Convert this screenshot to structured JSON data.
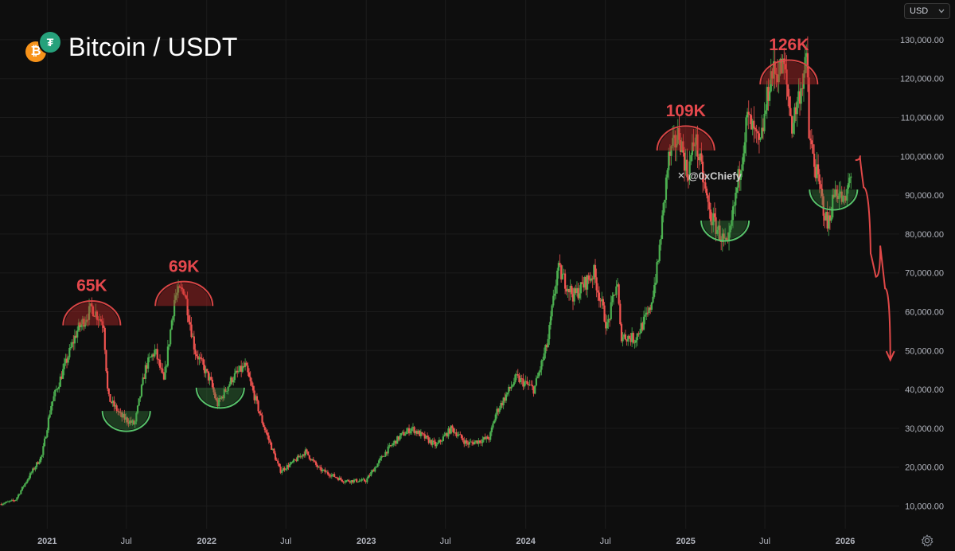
{
  "header": {
    "title": "Bitcoin / USDT",
    "currency_value": "USD",
    "icons": [
      "bitcoin-coin-icon",
      "tether-coin-icon",
      "chevron-down-icon",
      "settings-gear-icon"
    ]
  },
  "watermark": "@0xChiefy",
  "colors": {
    "background": "#0e0e0e",
    "up_candle": "#4caf50",
    "down_candle": "#ef5350",
    "top_arc": "#d94545",
    "bottom_arc": "#57c26a",
    "annotation_text": "#e5484d",
    "grid": "#1c1c1c"
  },
  "chart_data": {
    "type": "candlestick",
    "series_name": "Bitcoin / USDT",
    "y_axis": {
      "scale": "linear",
      "range": [
        4000,
        134000
      ],
      "ticks": [
        10000,
        20000,
        30000,
        40000,
        50000,
        60000,
        70000,
        80000,
        90000,
        100000,
        110000,
        120000,
        130000
      ],
      "tick_labels": [
        "10,000.00",
        "20,000.00",
        "30,000.00",
        "40,000.00",
        "50,000.00",
        "60,000.00",
        "70,000.00",
        "80,000.00",
        "90,000.00",
        "100,000.00",
        "110,000.00",
        "120,000.00",
        "130,000.00"
      ],
      "position": "right"
    },
    "x_axis": {
      "range": [
        "2020-09-15",
        "2026-04-20"
      ],
      "ticks": [
        "2021-01-01",
        "2021-07-01",
        "2022-01-01",
        "2022-07-01",
        "2023-01-01",
        "2023-07-01",
        "2024-01-01",
        "2024-07-01",
        "2025-01-01",
        "2025-07-01",
        "2026-01-01"
      ],
      "tick_labels": [
        "2021",
        "Jul",
        "2022",
        "Jul",
        "2023",
        "Jul",
        "2024",
        "Jul",
        "2025",
        "Jul",
        "2026"
      ]
    },
    "grid": true,
    "price_path": [
      [
        "2020-09-15",
        10500
      ],
      [
        "2020-10-20",
        11500
      ],
      [
        "2020-11-20",
        17500
      ],
      [
        "2020-12-20",
        23000
      ],
      [
        "2021-01-10",
        36000
      ],
      [
        "2021-02-10",
        46000
      ],
      [
        "2021-03-10",
        55000
      ],
      [
        "2021-04-13",
        61000
      ],
      [
        "2021-05-10",
        57000
      ],
      [
        "2021-05-20",
        38000
      ],
      [
        "2021-06-20",
        33000
      ],
      [
        "2021-07-20",
        31000
      ],
      [
        "2021-08-15",
        46000
      ],
      [
        "2021-09-05",
        50000
      ],
      [
        "2021-09-25",
        42000
      ],
      [
        "2021-10-20",
        64000
      ],
      [
        "2021-11-10",
        66000
      ],
      [
        "2021-12-05",
        50000
      ],
      [
        "2022-01-10",
        42000
      ],
      [
        "2022-01-25",
        36000
      ],
      [
        "2022-03-01",
        43000
      ],
      [
        "2022-03-30",
        46000
      ],
      [
        "2022-05-10",
        31000
      ],
      [
        "2022-06-18",
        19000
      ],
      [
        "2022-07-15",
        21000
      ],
      [
        "2022-08-15",
        24000
      ],
      [
        "2022-09-15",
        19500
      ],
      [
        "2022-11-10",
        16500
      ],
      [
        "2022-12-31",
        16500
      ],
      [
        "2023-02-15",
        24000
      ],
      [
        "2023-03-20",
        28000
      ],
      [
        "2023-04-15",
        30000
      ],
      [
        "2023-06-10",
        25500
      ],
      [
        "2023-07-15",
        30000
      ],
      [
        "2023-08-20",
        26000
      ],
      [
        "2023-10-10",
        27500
      ],
      [
        "2023-10-25",
        34000
      ],
      [
        "2023-12-10",
        43000
      ],
      [
        "2024-01-20",
        40000
      ],
      [
        "2024-02-20",
        52000
      ],
      [
        "2024-03-14",
        71000
      ],
      [
        "2024-04-20",
        64000
      ],
      [
        "2024-06-05",
        70000
      ],
      [
        "2024-07-05",
        56000
      ],
      [
        "2024-07-28",
        68000
      ],
      [
        "2024-08-05",
        54000
      ],
      [
        "2024-09-06",
        53000
      ],
      [
        "2024-10-10",
        60000
      ],
      [
        "2024-10-29",
        72000
      ],
      [
        "2024-11-22",
        99000
      ],
      [
        "2024-12-17",
        106000
      ],
      [
        "2025-01-05",
        95000
      ],
      [
        "2025-01-22",
        105000
      ],
      [
        "2025-02-25",
        85000
      ],
      [
        "2025-04-07",
        76000
      ],
      [
        "2025-05-22",
        110000
      ],
      [
        "2025-06-20",
        102000
      ],
      [
        "2025-07-14",
        121000
      ],
      [
        "2025-08-14",
        123000
      ],
      [
        "2025-09-01",
        108000
      ],
      [
        "2025-10-06",
        125000
      ],
      [
        "2025-10-10",
        105000
      ],
      [
        "2025-11-21",
        82000
      ],
      [
        "2025-12-10",
        92000
      ],
      [
        "2025-12-31",
        87500
      ],
      [
        "2026-01-14",
        96000
      ]
    ],
    "annotations": [
      {
        "label": "65K",
        "type": "top-arc",
        "date": "2021-04-13",
        "price": 61000
      },
      {
        "label": "69K",
        "type": "top-arc",
        "date": "2021-11-10",
        "price": 66000
      },
      {
        "label": "109K",
        "type": "top-arc",
        "date": "2025-01-01",
        "price": 106000
      },
      {
        "label": "126K",
        "type": "top-arc",
        "date": "2025-08-25",
        "price": 123000
      },
      {
        "type": "bottom-arc",
        "date": "2021-07-01",
        "price": 32000
      },
      {
        "type": "bottom-arc",
        "date": "2022-02-01",
        "price": 38000
      },
      {
        "type": "bottom-arc",
        "date": "2025-04-01",
        "price": 81000
      },
      {
        "type": "bottom-arc",
        "date": "2025-12-05",
        "price": 89000
      }
    ],
    "projection_path": [
      [
        "2026-01-24",
        99000
      ],
      [
        "2026-02-04",
        100000
      ],
      [
        "2026-02-12",
        92000
      ],
      [
        "2026-02-28",
        75000
      ],
      [
        "2026-03-12",
        69000
      ],
      [
        "2026-03-22",
        77000
      ],
      [
        "2026-04-02",
        66000
      ],
      [
        "2026-04-14",
        48000
      ]
    ]
  }
}
